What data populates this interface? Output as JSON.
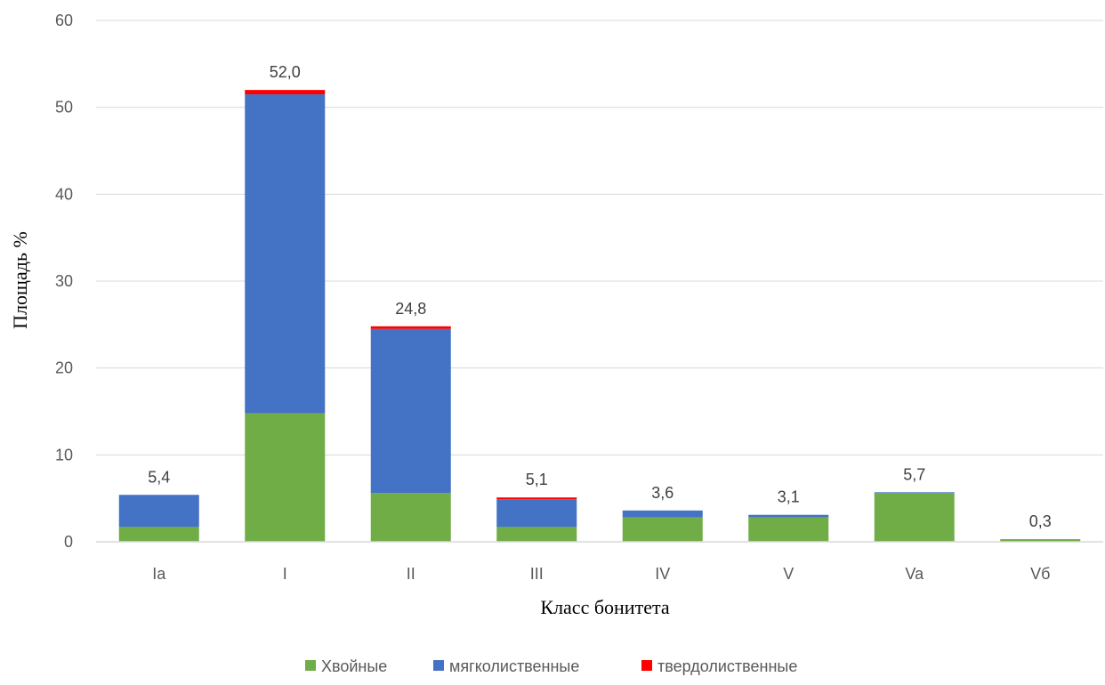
{
  "chart_data": {
    "type": "bar",
    "stacked": true,
    "title": "",
    "xlabel": "Класс бонитета",
    "ylabel": "Площадь %",
    "ylim": [
      0,
      60
    ],
    "yticks": [
      0,
      10,
      20,
      30,
      40,
      50,
      60
    ],
    "categories": [
      "Ia",
      "I",
      "II",
      "III",
      "IV",
      "V",
      "Va",
      "Vб"
    ],
    "series": [
      {
        "name": "Хвойные",
        "color": "#70AD47",
        "values": [
          1.7,
          14.8,
          5.6,
          1.7,
          2.8,
          2.8,
          5.6,
          0.3
        ]
      },
      {
        "name": "мягколиственные",
        "color": "#4472C4",
        "values": [
          3.7,
          36.7,
          18.9,
          3.2,
          0.8,
          0.3,
          0.1,
          0.0
        ]
      },
      {
        "name": "твердолиственные",
        "color": "#FF0000",
        "values": [
          0.0,
          0.5,
          0.3,
          0.2,
          0.0,
          0.0,
          0.0,
          0.0
        ]
      }
    ],
    "total_labels": [
      "5,4",
      "52,0",
      "24,8",
      "5,1",
      "3,6",
      "3,1",
      "5,7",
      "0,3"
    ],
    "grid": true,
    "legend_position": "bottom"
  }
}
